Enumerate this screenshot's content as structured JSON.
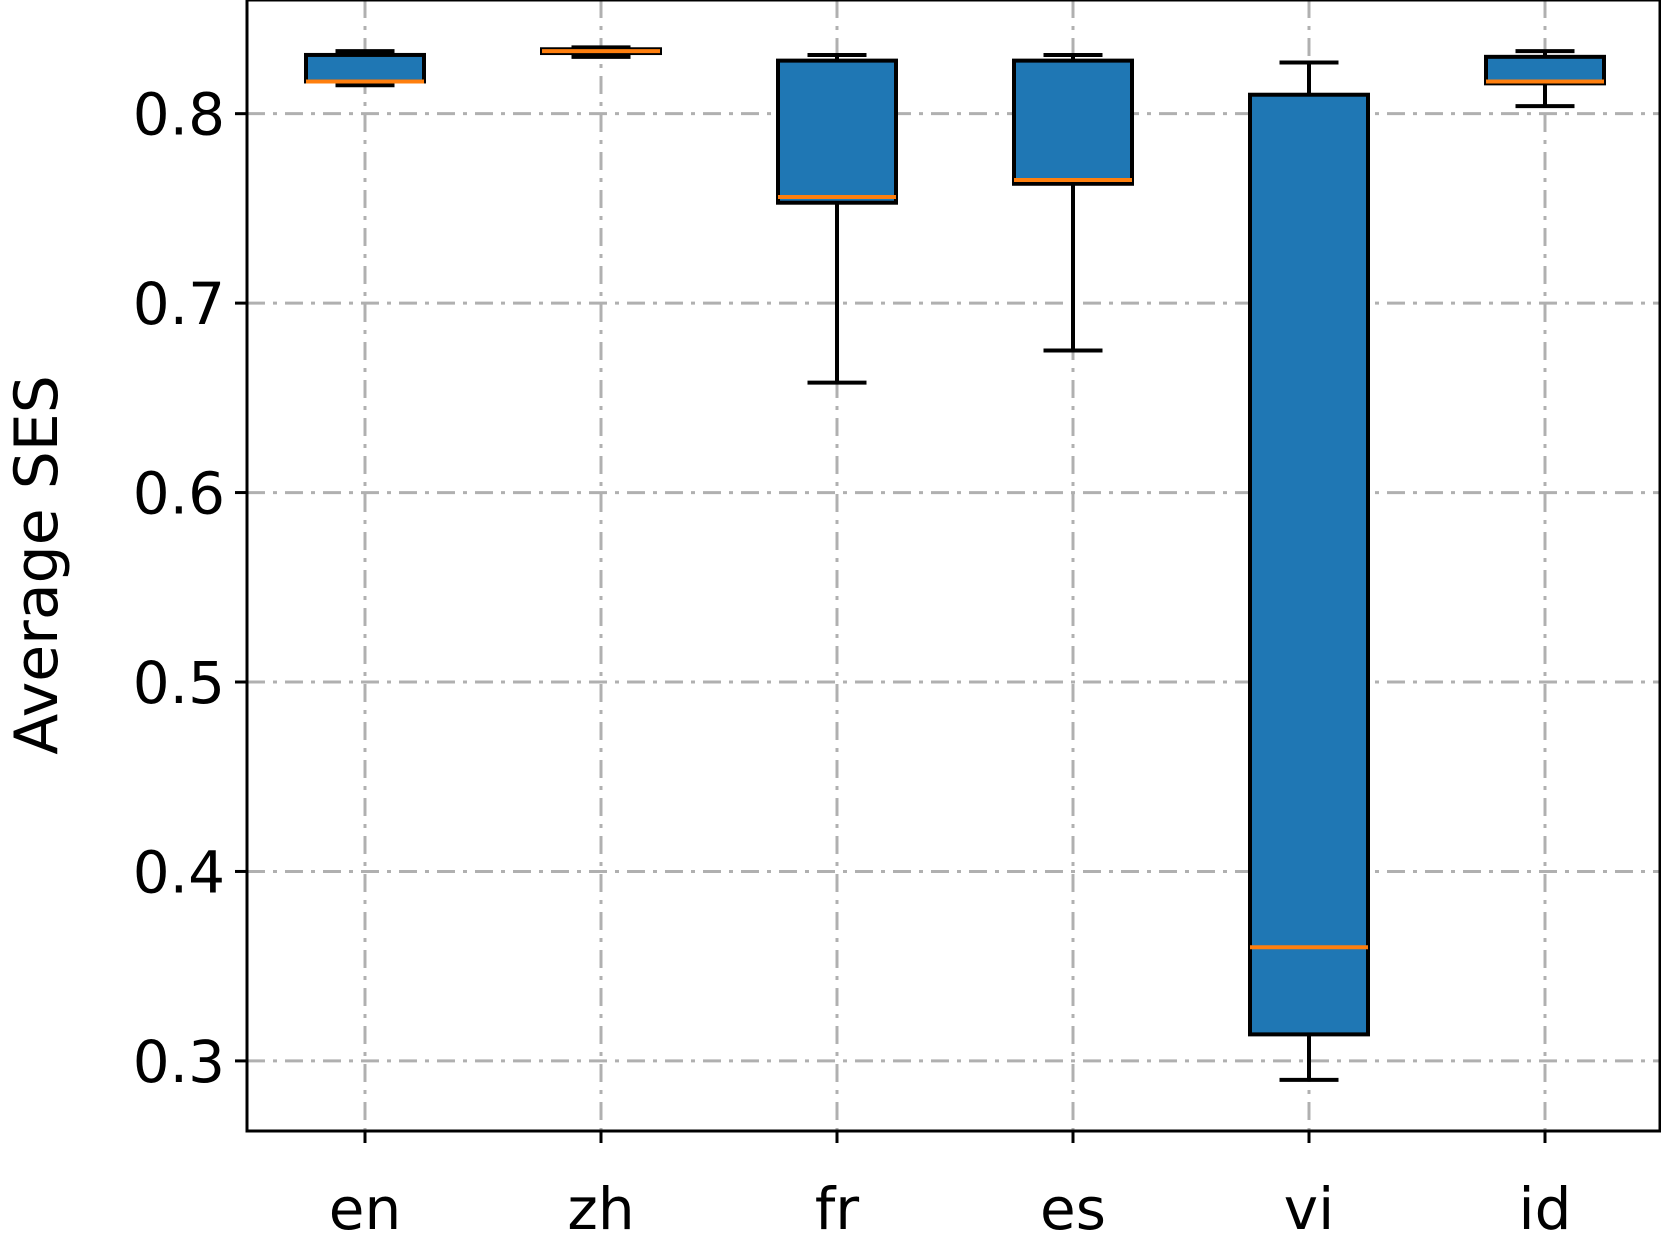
{
  "chart_data": {
    "type": "box",
    "categories": [
      "en",
      "zh",
      "fr",
      "es",
      "vi",
      "id"
    ],
    "boxes": [
      {
        "category": "en",
        "whisker_low": 0.815,
        "q1": 0.817,
        "median": 0.817,
        "q3": 0.831,
        "whisker_high": 0.833
      },
      {
        "category": "zh",
        "whisker_low": 0.83,
        "q1": 0.832,
        "median": 0.833,
        "q3": 0.834,
        "whisker_high": 0.835
      },
      {
        "category": "fr",
        "whisker_low": 0.658,
        "q1": 0.753,
        "median": 0.756,
        "q3": 0.828,
        "whisker_high": 0.831
      },
      {
        "category": "es",
        "whisker_low": 0.675,
        "q1": 0.763,
        "median": 0.765,
        "q3": 0.828,
        "whisker_high": 0.831
      },
      {
        "category": "vi",
        "whisker_low": 0.29,
        "q1": 0.314,
        "median": 0.36,
        "q3": 0.81,
        "whisker_high": 0.827
      },
      {
        "category": "id",
        "whisker_low": 0.804,
        "q1": 0.816,
        "median": 0.817,
        "q3": 0.83,
        "whisker_high": 0.833
      }
    ],
    "yticks": [
      "0.3",
      "0.4",
      "0.5",
      "0.6",
      "0.7",
      "0.8"
    ],
    "xlabel": "",
    "ylabel": "Average SES",
    "ylim": [
      0.263,
      0.86
    ],
    "grid": true,
    "colors": {
      "box_fill": "#1f77b4",
      "median": "#ff7f0e",
      "edge": "#000000",
      "grid": "#b0b0b0"
    }
  }
}
